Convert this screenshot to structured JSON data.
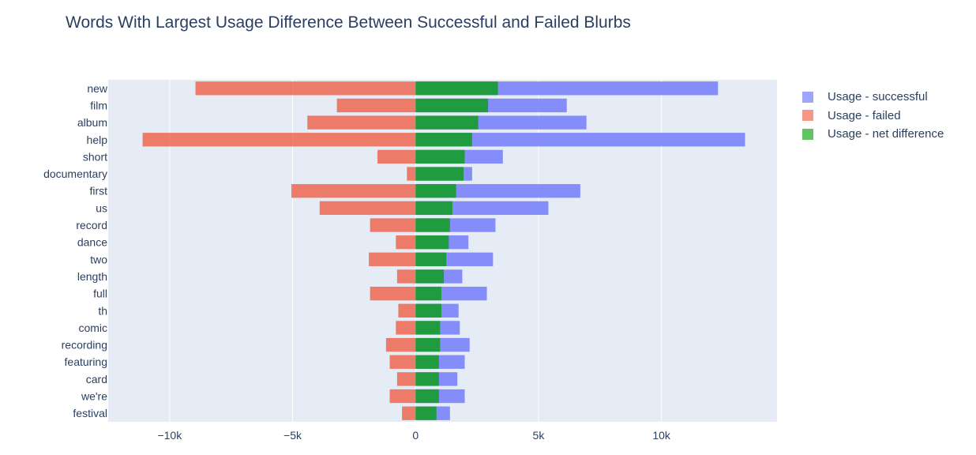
{
  "chart_data": {
    "type": "bar",
    "orientation": "horizontal",
    "barmode": "overlay",
    "title": "Words With Largest Usage Difference Between Successful and Failed Blurbs",
    "xlabel": "",
    "ylabel": "",
    "xlim": [
      -12500,
      14700
    ],
    "x_ticks": [
      -10000,
      -5000,
      0,
      5000,
      10000
    ],
    "x_tick_labels": [
      "−10k",
      "−5k",
      "0",
      "5k",
      "10k"
    ],
    "grid": true,
    "legend_position": "right",
    "categories": [
      "new",
      "film",
      "album",
      "help",
      "short",
      "documentary",
      "first",
      "us",
      "record",
      "dance",
      "two",
      "length",
      "full",
      "th",
      "comic",
      "recording",
      "featuring",
      "card",
      "we're",
      "festival"
    ],
    "series": [
      {
        "name": "Usage - successful",
        "color": "#636efa",
        "values": [
          12300,
          6150,
          6950,
          13400,
          3550,
          2300,
          6700,
          5400,
          3250,
          2150,
          3150,
          1900,
          2900,
          1750,
          1800,
          2200,
          2000,
          1700,
          2000,
          1400
        ]
      },
      {
        "name": "Usage - failed",
        "color": "#ef553b",
        "values": [
          -8950,
          -3200,
          -4400,
          -11100,
          -1550,
          -350,
          -5050,
          -3900,
          -1850,
          -800,
          -1900,
          -750,
          -1850,
          -700,
          -800,
          -1200,
          -1050,
          -750,
          -1050,
          -550
        ]
      },
      {
        "name": "Usage - net difference",
        "color": "#00a000",
        "values": [
          3350,
          2950,
          2550,
          2300,
          2000,
          1950,
          1650,
          1500,
          1400,
          1350,
          1250,
          1150,
          1050,
          1050,
          1000,
          1000,
          950,
          950,
          950,
          850
        ]
      }
    ]
  }
}
